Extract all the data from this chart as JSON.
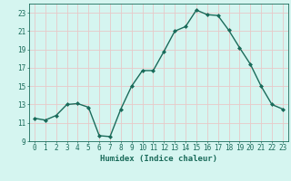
{
  "x": [
    0,
    1,
    2,
    3,
    4,
    5,
    6,
    7,
    8,
    9,
    10,
    11,
    12,
    13,
    14,
    15,
    16,
    17,
    18,
    19,
    20,
    21,
    22,
    23
  ],
  "y": [
    11.5,
    11.3,
    11.8,
    13.0,
    13.1,
    12.7,
    9.6,
    9.5,
    12.5,
    15.0,
    16.7,
    16.7,
    18.8,
    21.0,
    21.5,
    23.3,
    22.8,
    22.7,
    21.1,
    19.2,
    17.4,
    15.0,
    13.0,
    12.5
  ],
  "xlim": [
    -0.5,
    23.5
  ],
  "ylim": [
    9,
    24
  ],
  "yticks": [
    9,
    11,
    13,
    15,
    17,
    19,
    21,
    23
  ],
  "xticks": [
    0,
    1,
    2,
    3,
    4,
    5,
    6,
    7,
    8,
    9,
    10,
    11,
    12,
    13,
    14,
    15,
    16,
    17,
    18,
    19,
    20,
    21,
    22,
    23
  ],
  "xlabel": "Humidex (Indice chaleur)",
  "line_color": "#1a6b5a",
  "marker": "D",
  "marker_size": 2.0,
  "bg_color": "#d5f5f0",
  "grid_color": "#e8c8c8",
  "xlabel_fontsize": 6.5,
  "tick_fontsize": 5.5,
  "linewidth": 1.0
}
